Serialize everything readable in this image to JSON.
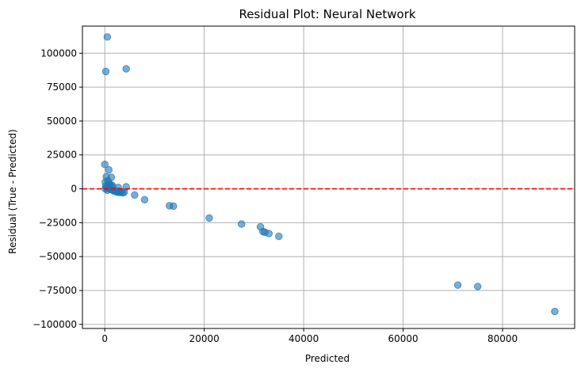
{
  "chart_data": {
    "type": "scatter",
    "title": "Residual Plot: Neural Network",
    "xlabel": "Predicted",
    "ylabel": "Residual (True - Predicted)",
    "xlim": [
      -4500,
      94500
    ],
    "ylim": [
      -103000,
      120000
    ],
    "grid": true,
    "point_color": "#1f77b4",
    "point_alpha": 0.6,
    "reference_line": {
      "y": 0,
      "color": "#ff0000",
      "style": "dashed"
    },
    "x_ticks": [
      {
        "value": 0,
        "label": "0"
      },
      {
        "value": 20000,
        "label": "20000"
      },
      {
        "value": 40000,
        "label": "40000"
      },
      {
        "value": 60000,
        "label": "60000"
      },
      {
        "value": 80000,
        "label": "80000"
      }
    ],
    "y_ticks": [
      {
        "value": -100000,
        "label": "−100000"
      },
      {
        "value": -75000,
        "label": "−75000"
      },
      {
        "value": -50000,
        "label": "−50000"
      },
      {
        "value": -25000,
        "label": "−25000"
      },
      {
        "value": 0,
        "label": "0"
      },
      {
        "value": 25000,
        "label": "25000"
      },
      {
        "value": 50000,
        "label": "50000"
      },
      {
        "value": 75000,
        "label": "75000"
      },
      {
        "value": 100000,
        "label": "100000"
      }
    ],
    "points": [
      {
        "x": 500,
        "y": 112000
      },
      {
        "x": 200,
        "y": 86500
      },
      {
        "x": 4300,
        "y": 88500
      },
      {
        "x": 0,
        "y": 18000
      },
      {
        "x": 800,
        "y": 14000
      },
      {
        "x": 300,
        "y": 9000
      },
      {
        "x": 1300,
        "y": 8500
      },
      {
        "x": 100,
        "y": 5000
      },
      {
        "x": 600,
        "y": 6000
      },
      {
        "x": 900,
        "y": 4000
      },
      {
        "x": 1100,
        "y": 3000
      },
      {
        "x": 1500,
        "y": 2500
      },
      {
        "x": 200,
        "y": 2000
      },
      {
        "x": 400,
        "y": 1000
      },
      {
        "x": 700,
        "y": 500
      },
      {
        "x": 1000,
        "y": 0
      },
      {
        "x": 1200,
        "y": -500
      },
      {
        "x": 1600,
        "y": -1000
      },
      {
        "x": 1800,
        "y": -1500
      },
      {
        "x": 2000,
        "y": -1200
      },
      {
        "x": 2200,
        "y": -2000
      },
      {
        "x": 2500,
        "y": -2500
      },
      {
        "x": 2800,
        "y": -1800
      },
      {
        "x": 3000,
        "y": -2800
      },
      {
        "x": 3300,
        "y": -2200
      },
      {
        "x": 3600,
        "y": -3000
      },
      {
        "x": 3900,
        "y": -2500
      },
      {
        "x": 2700,
        "y": 1000
      },
      {
        "x": 4300,
        "y": 1500
      },
      {
        "x": 1400,
        "y": 1500
      },
      {
        "x": 500,
        "y": -1000
      },
      {
        "x": 100,
        "y": 0
      },
      {
        "x": 6000,
        "y": -4500
      },
      {
        "x": 8000,
        "y": -8000
      },
      {
        "x": 13000,
        "y": -12500
      },
      {
        "x": 13800,
        "y": -12800
      },
      {
        "x": 21000,
        "y": -21500
      },
      {
        "x": 27500,
        "y": -26000
      },
      {
        "x": 31300,
        "y": -28000
      },
      {
        "x": 31800,
        "y": -31500
      },
      {
        "x": 32200,
        "y": -32000
      },
      {
        "x": 33000,
        "y": -33000
      },
      {
        "x": 35000,
        "y": -35000
      },
      {
        "x": 71000,
        "y": -71000
      },
      {
        "x": 75000,
        "y": -72000
      },
      {
        "x": 90500,
        "y": -90500
      }
    ]
  }
}
